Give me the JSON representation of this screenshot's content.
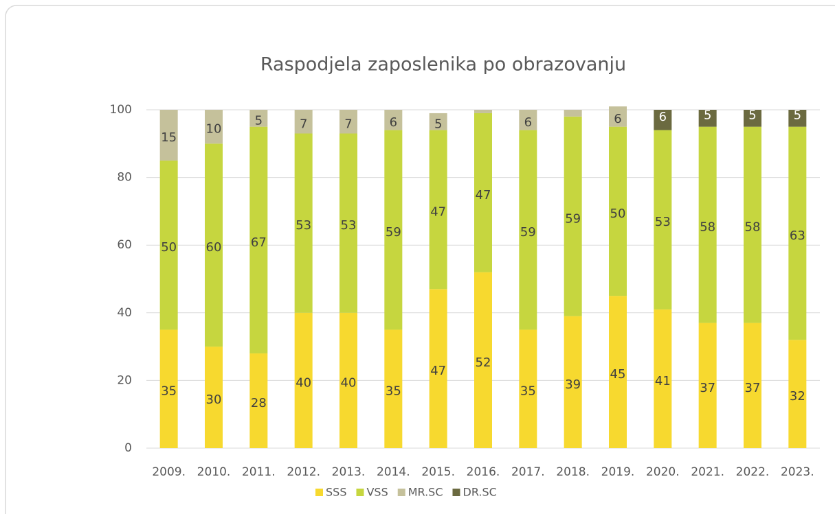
{
  "chart_data": {
    "type": "stacked_bar",
    "title": "Raspodjela zaposlenika po obrazovanju",
    "categories": [
      "2009.",
      "2010.",
      "2011.",
      "2012.",
      "2013.",
      "2014.",
      "2015.",
      "2016.",
      "2017.",
      "2018.",
      "2019.",
      "2020.",
      "2021.",
      "2022.",
      "2023."
    ],
    "series": [
      {
        "name": "SSS",
        "color": "#f7d92f",
        "values": [
          35,
          30,
          28,
          40,
          40,
          35,
          47,
          52,
          35,
          39,
          45,
          41,
          37,
          37,
          32
        ]
      },
      {
        "name": "VSS",
        "color": "#c6d63f",
        "values": [
          50,
          60,
          67,
          53,
          53,
          59,
          47,
          47,
          59,
          59,
          50,
          53,
          58,
          58,
          63
        ]
      },
      {
        "name": "MR.SC",
        "color": "#c5c19b",
        "values": [
          15,
          10,
          5,
          7,
          7,
          6,
          5,
          1,
          6,
          2,
          6,
          null,
          null,
          null,
          null
        ],
        "value_labels": [
          "15",
          "10",
          "5",
          "7",
          "7",
          "6",
          "5",
          null,
          "6",
          null,
          "6",
          null,
          null,
          null,
          null
        ]
      },
      {
        "name": "DR.SC",
        "color": "#6b6a40",
        "values": [
          null,
          null,
          null,
          null,
          null,
          null,
          null,
          null,
          null,
          null,
          null,
          6,
          5,
          5,
          5
        ]
      }
    ],
    "ylim": [
      0,
      100
    ],
    "yticks": [
      0,
      20,
      40,
      60,
      80,
      100
    ],
    "grid": true,
    "legend": "bottom"
  }
}
